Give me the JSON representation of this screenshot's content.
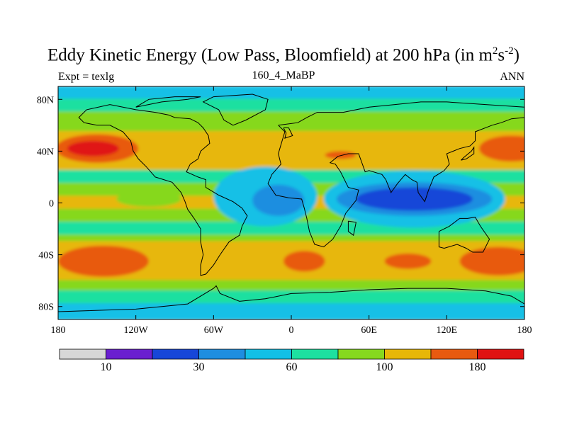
{
  "title": {
    "main": "Eddy Kinetic Energy (Low Pass, Bloomfield) at 200 hPa (in m",
    "sup1": "2",
    "mid": "s",
    "sup2": "-2",
    "close": ")"
  },
  "left_label": "Expt = texlg",
  "center_label": "160_4_MaBP",
  "right_label": "ANN",
  "chart_data": {
    "type": "heatmap",
    "variable": "Eddy kinetic energy at 200 hPa",
    "units": "m2 s-2",
    "x_range": [
      -180,
      180
    ],
    "y_range": [
      -90,
      90
    ],
    "x_ticks": [
      {
        "value": -180,
        "label": "180"
      },
      {
        "value": -120,
        "label": "120W"
      },
      {
        "value": -60,
        "label": "60W"
      },
      {
        "value": 0,
        "label": "0"
      },
      {
        "value": 60,
        "label": "60E"
      },
      {
        "value": 120,
        "label": "120E"
      },
      {
        "value": 180,
        "label": "180"
      }
    ],
    "y_ticks": [
      {
        "value": 80,
        "label": "80N"
      },
      {
        "value": 40,
        "label": "40N"
      },
      {
        "value": 0,
        "label": "0"
      },
      {
        "value": -40,
        "label": "40S"
      },
      {
        "value": -80,
        "label": "80S"
      }
    ],
    "colorbar": {
      "colors": [
        "#d7d7d7",
        "#6a1fd0",
        "#1746d8",
        "#1e8ee0",
        "#12c0e6",
        "#1de0a0",
        "#86d81e",
        "#e7b708",
        "#e85a10",
        "#e01212"
      ],
      "labels": [
        {
          "text": "10",
          "after_box": 1
        },
        {
          "text": "30",
          "after_box": 3
        },
        {
          "text": "60",
          "after_box": 5
        },
        {
          "text": "100",
          "after_box": 7
        },
        {
          "text": "180",
          "after_box": 9
        }
      ]
    },
    "field_bands": [
      {
        "lat_from": 90,
        "lat_to": 80,
        "level": 4
      },
      {
        "lat_from": 80,
        "lat_to": 70,
        "level": 5
      },
      {
        "lat_from": 70,
        "lat_to": 55,
        "level": 6
      },
      {
        "lat_from": 55,
        "lat_to": 25,
        "level": 7
      },
      {
        "lat_from": 25,
        "lat_to": 15,
        "level": 5
      },
      {
        "lat_from": 15,
        "lat_to": 5,
        "level": 6
      },
      {
        "lat_from": 5,
        "lat_to": -5,
        "level": 7
      },
      {
        "lat_from": -5,
        "lat_to": -15,
        "level": 6
      },
      {
        "lat_from": -15,
        "lat_to": -25,
        "level": 5
      },
      {
        "lat_from": -25,
        "lat_to": -30,
        "level": 6
      },
      {
        "lat_from": -30,
        "lat_to": -60,
        "level": 7
      },
      {
        "lat_from": -60,
        "lat_to": -68,
        "level": 6
      },
      {
        "lat_from": -68,
        "lat_to": -78,
        "level": 5
      },
      {
        "lat_from": -78,
        "lat_to": -90,
        "level": 4
      }
    ],
    "field_blobs": [
      {
        "name": "n-pacific-jet",
        "lon": -150,
        "lat": 42,
        "rx": 32,
        "ry": 11,
        "level": 8
      },
      {
        "name": "n-pacific-core",
        "lon": -153,
        "lat": 42,
        "rx": 20,
        "ry": 6,
        "level": 9
      },
      {
        "name": "n-atlantic-jet",
        "lon": 170,
        "lat": 42,
        "rx": 25,
        "ry": 10,
        "level": 8
      },
      {
        "name": "asia-jet",
        "lon": 38,
        "lat": 37,
        "rx": 12,
        "ry": 3,
        "level": 8
      },
      {
        "name": "s-pacific-jet",
        "lon": -145,
        "lat": -45,
        "rx": 35,
        "ry": 12,
        "level": 8
      },
      {
        "name": "s-indian-jet",
        "lon": 160,
        "lat": -45,
        "rx": 30,
        "ry": 11,
        "level": 8
      },
      {
        "name": "s-atlantic-jet",
        "lon": 10,
        "lat": -45,
        "rx": 16,
        "ry": 8,
        "level": 8
      },
      {
        "name": "s-indian-jet-2",
        "lon": 90,
        "lat": -45,
        "rx": 18,
        "ry": 6,
        "level": 8
      },
      {
        "name": "eq-south-america",
        "lon": -20,
        "lat": 5,
        "rx": 40,
        "ry": 23,
        "level": 4
      },
      {
        "name": "eq-south-america-core",
        "lon": -10,
        "lat": 2,
        "rx": 20,
        "ry": 12,
        "level": 3
      },
      {
        "name": "eq-indian",
        "lon": 95,
        "lat": 3,
        "rx": 70,
        "ry": 22,
        "level": 4
      },
      {
        "name": "eq-indian-mid",
        "lon": 95,
        "lat": 3,
        "rx": 60,
        "ry": 13,
        "level": 3
      },
      {
        "name": "eq-indian-core",
        "lon": 95,
        "lat": 3,
        "rx": 45,
        "ry": 9,
        "level": 2
      },
      {
        "name": "eq-pacific",
        "lon": -110,
        "lat": 3,
        "rx": 25,
        "ry": 6,
        "level": 6
      }
    ],
    "coastlines": [
      {
        "name": "continent-west",
        "points": [
          [
            -140,
            76
          ],
          [
            -120,
            72
          ],
          [
            -105,
            70
          ],
          [
            -95,
            68
          ],
          [
            -90,
            66
          ],
          [
            -78,
            65
          ],
          [
            -72,
            62
          ],
          [
            -68,
            58
          ],
          [
            -64,
            52
          ],
          [
            -63,
            46
          ],
          [
            -70,
            40
          ],
          [
            -72,
            34
          ],
          [
            -78,
            30
          ],
          [
            -81,
            24
          ],
          [
            -72,
            20
          ],
          [
            -66,
            18
          ],
          [
            -66,
            12
          ],
          [
            -56,
            6
          ],
          [
            -45,
            1
          ],
          [
            -38,
            -4
          ],
          [
            -34,
            -10
          ],
          [
            -38,
            -18
          ],
          [
            -40,
            -25
          ],
          [
            -48,
            -30
          ],
          [
            -55,
            -40
          ],
          [
            -60,
            -48
          ],
          [
            -66,
            -55
          ],
          [
            -70,
            -56
          ],
          [
            -70,
            -48
          ],
          [
            -68,
            -40
          ],
          [
            -70,
            -30
          ],
          [
            -70,
            -20
          ],
          [
            -75,
            -12
          ],
          [
            -80,
            -5
          ],
          [
            -82,
            1
          ],
          [
            -85,
            8
          ],
          [
            -92,
            16
          ],
          [
            -105,
            20
          ],
          [
            -112,
            28
          ],
          [
            -118,
            34
          ],
          [
            -122,
            40
          ],
          [
            -124,
            48
          ],
          [
            -130,
            55
          ],
          [
            -140,
            60
          ],
          [
            -150,
            60
          ],
          [
            -160,
            62
          ],
          [
            -164,
            66
          ],
          [
            -158,
            72
          ],
          [
            -140,
            76
          ]
        ]
      },
      {
        "name": "continent-east",
        "points": [
          [
            -10,
            60
          ],
          [
            -5,
            55
          ],
          [
            -8,
            45
          ],
          [
            -10,
            38
          ],
          [
            -8,
            30
          ],
          [
            -15,
            22
          ],
          [
            -18,
            15
          ],
          [
            -12,
            6
          ],
          [
            -2,
            4
          ],
          [
            8,
            3
          ],
          [
            10,
            -4
          ],
          [
            12,
            -12
          ],
          [
            14,
            -22
          ],
          [
            18,
            -32
          ],
          [
            25,
            -34
          ],
          [
            32,
            -28
          ],
          [
            38,
            -18
          ],
          [
            42,
            -8
          ],
          [
            50,
            2
          ],
          [
            52,
            10
          ],
          [
            44,
            12
          ],
          [
            42,
            16
          ],
          [
            38,
            24
          ],
          [
            34,
            30
          ],
          [
            30,
            31
          ],
          [
            36,
            36
          ],
          [
            44,
            38
          ],
          [
            52,
            38
          ],
          [
            57,
            24
          ],
          [
            60,
            25
          ],
          [
            70,
            22
          ],
          [
            73,
            18
          ],
          [
            77,
            8
          ],
          [
            82,
            15
          ],
          [
            88,
            22
          ],
          [
            93,
            18
          ],
          [
            97,
            16
          ],
          [
            98,
            8
          ],
          [
            103,
            1
          ],
          [
            106,
            10
          ],
          [
            110,
            20
          ],
          [
            118,
            25
          ],
          [
            122,
            30
          ],
          [
            120,
            38
          ],
          [
            125,
            40
          ],
          [
            130,
            42
          ],
          [
            138,
            44
          ],
          [
            142,
            48
          ],
          [
            142,
            55
          ],
          [
            155,
            60
          ],
          [
            162,
            62
          ],
          [
            170,
            65
          ],
          [
            180,
            66
          ],
          [
            180,
            74
          ],
          [
            150,
            76
          ],
          [
            120,
            78
          ],
          [
            100,
            78
          ],
          [
            80,
            76
          ],
          [
            60,
            74
          ],
          [
            40,
            70
          ],
          [
            30,
            70
          ],
          [
            20,
            70
          ],
          [
            12,
            66
          ],
          [
            5,
            62
          ],
          [
            -10,
            60
          ]
        ]
      },
      {
        "name": "australia",
        "points": [
          [
            114,
            -22
          ],
          [
            114,
            -34
          ],
          [
            118,
            -35
          ],
          [
            128,
            -32
          ],
          [
            135,
            -35
          ],
          [
            140,
            -38
          ],
          [
            148,
            -38
          ],
          [
            153,
            -28
          ],
          [
            146,
            -18
          ],
          [
            142,
            -11
          ],
          [
            136,
            -12
          ],
          [
            130,
            -12
          ],
          [
            122,
            -18
          ],
          [
            114,
            -22
          ]
        ]
      },
      {
        "name": "greenland",
        "points": [
          [
            -60,
            82
          ],
          [
            -30,
            84
          ],
          [
            -18,
            80
          ],
          [
            -20,
            72
          ],
          [
            -35,
            64
          ],
          [
            -45,
            60
          ],
          [
            -52,
            64
          ],
          [
            -56,
            72
          ],
          [
            -68,
            78
          ],
          [
            -60,
            82
          ]
        ]
      },
      {
        "name": "uk",
        "points": [
          [
            -6,
            58
          ],
          [
            -2,
            58
          ],
          [
            1,
            52
          ],
          [
            -5,
            50
          ],
          [
            -4,
            54
          ],
          [
            -6,
            58
          ]
        ]
      },
      {
        "name": "madagascar",
        "points": [
          [
            44,
            -14
          ],
          [
            50,
            -15
          ],
          [
            48,
            -25
          ],
          [
            44,
            -22
          ],
          [
            44,
            -14
          ]
        ]
      },
      {
        "name": "japan",
        "points": [
          [
            131,
            33
          ],
          [
            135,
            34
          ],
          [
            141,
            38
          ],
          [
            141,
            43
          ],
          [
            139,
            40
          ],
          [
            133,
            35
          ],
          [
            131,
            33
          ]
        ]
      },
      {
        "name": "antarctica",
        "points": [
          [
            -180,
            -84
          ],
          [
            -120,
            -82
          ],
          [
            -80,
            -78
          ],
          [
            -60,
            -66
          ],
          [
            -58,
            -64
          ],
          [
            -55,
            -70
          ],
          [
            -40,
            -76
          ],
          [
            -20,
            -74
          ],
          [
            0,
            -70
          ],
          [
            30,
            -69
          ],
          [
            60,
            -67
          ],
          [
            90,
            -66
          ],
          [
            120,
            -66
          ],
          [
            150,
            -68
          ],
          [
            170,
            -72
          ],
          [
            180,
            -78
          ]
        ]
      },
      {
        "name": "canadian-arctic-islands",
        "points": [
          [
            -120,
            74
          ],
          [
            -100,
            78
          ],
          [
            -80,
            80
          ],
          [
            -70,
            82
          ],
          [
            -90,
            82
          ],
          [
            -110,
            80
          ],
          [
            -120,
            74
          ]
        ]
      }
    ]
  }
}
